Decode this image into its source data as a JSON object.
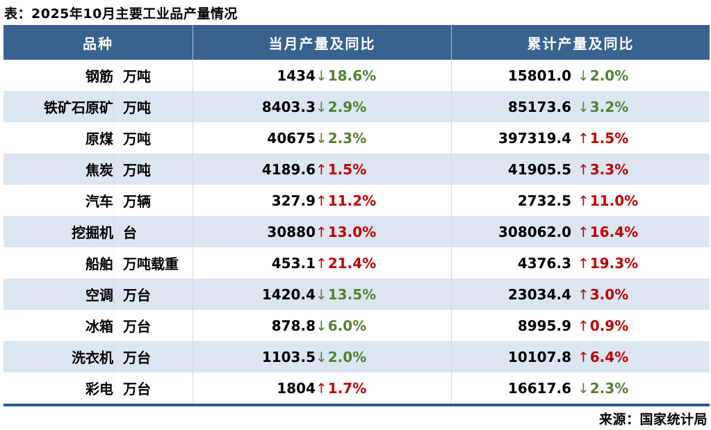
{
  "chart_data": {
    "type": "table",
    "title": "表：2025年10月主要工业品产量情况",
    "source": "来源：国家统计局",
    "columns": [
      "品种",
      "当月产量及同比",
      "累计产量及同比"
    ],
    "rows": [
      {
        "name": "钢筋",
        "unit": "万吨",
        "monthly": {
          "value": "1434",
          "direction": "down",
          "pct": "18.6%"
        },
        "cumulative": {
          "value": "15801.0",
          "direction": "down",
          "pct": "2.0%"
        }
      },
      {
        "name": "铁矿石原矿",
        "unit": "万吨",
        "monthly": {
          "value": "8403.3",
          "direction": "down",
          "pct": "2.9%"
        },
        "cumulative": {
          "value": "85173.6",
          "direction": "down",
          "pct": "3.2%"
        }
      },
      {
        "name": "原煤",
        "unit": "万吨",
        "monthly": {
          "value": "40675",
          "direction": "down",
          "pct": "2.3%"
        },
        "cumulative": {
          "value": "397319.4",
          "direction": "up",
          "pct": "1.5%"
        }
      },
      {
        "name": "焦炭",
        "unit": "万吨",
        "monthly": {
          "value": "4189.6",
          "direction": "up",
          "pct": "1.5%"
        },
        "cumulative": {
          "value": "41905.5",
          "direction": "up",
          "pct": "3.3%"
        }
      },
      {
        "name": "汽车",
        "unit": "万辆",
        "monthly": {
          "value": "327.9",
          "direction": "up",
          "pct": "11.2%"
        },
        "cumulative": {
          "value": "2732.5",
          "direction": "up",
          "pct": "11.0%"
        }
      },
      {
        "name": "挖掘机",
        "unit": "台",
        "monthly": {
          "value": "30880",
          "direction": "up",
          "pct": "13.0%"
        },
        "cumulative": {
          "value": "308062.0",
          "direction": "up",
          "pct": "16.4%"
        }
      },
      {
        "name": "船舶",
        "unit": "万吨载重",
        "monthly": {
          "value": "453.1",
          "direction": "up",
          "pct": "21.4%"
        },
        "cumulative": {
          "value": "4376.3",
          "direction": "up",
          "pct": "19.3%"
        }
      },
      {
        "name": "空调",
        "unit": "万台",
        "monthly": {
          "value": "1420.4",
          "direction": "down",
          "pct": "13.5%"
        },
        "cumulative": {
          "value": "23034.4",
          "direction": "up",
          "pct": "3.0%"
        }
      },
      {
        "name": "冰箱",
        "unit": "万台",
        "monthly": {
          "value": "878.8",
          "direction": "down",
          "pct": "6.0%"
        },
        "cumulative": {
          "value": "8995.9",
          "direction": "up",
          "pct": "0.9%"
        }
      },
      {
        "name": "洗衣机",
        "unit": "万台",
        "monthly": {
          "value": "1103.5",
          "direction": "down",
          "pct": "2.0%"
        },
        "cumulative": {
          "value": "10107.8",
          "direction": "up",
          "pct": "6.4%"
        }
      },
      {
        "name": "彩电",
        "unit": "万台",
        "monthly": {
          "value": "1804",
          "direction": "up",
          "pct": "1.7%"
        },
        "cumulative": {
          "value": "16617.6",
          "direction": "down",
          "pct": "2.3%"
        }
      }
    ],
    "layout": {
      "striped": true,
      "header_position": "top"
    }
  },
  "icons": {
    "up": "↑",
    "down": "↓"
  },
  "colors": {
    "header_bg": "#3A628F",
    "header_text": "#FFFFFF",
    "header_divider": "#A9C3DF",
    "alt_row_bg": "#DCE6F1",
    "increase_red": "#C00000",
    "decrease_green": "#538135",
    "bottom_rule": "#2E5C8C",
    "body_text": "#000000"
  }
}
